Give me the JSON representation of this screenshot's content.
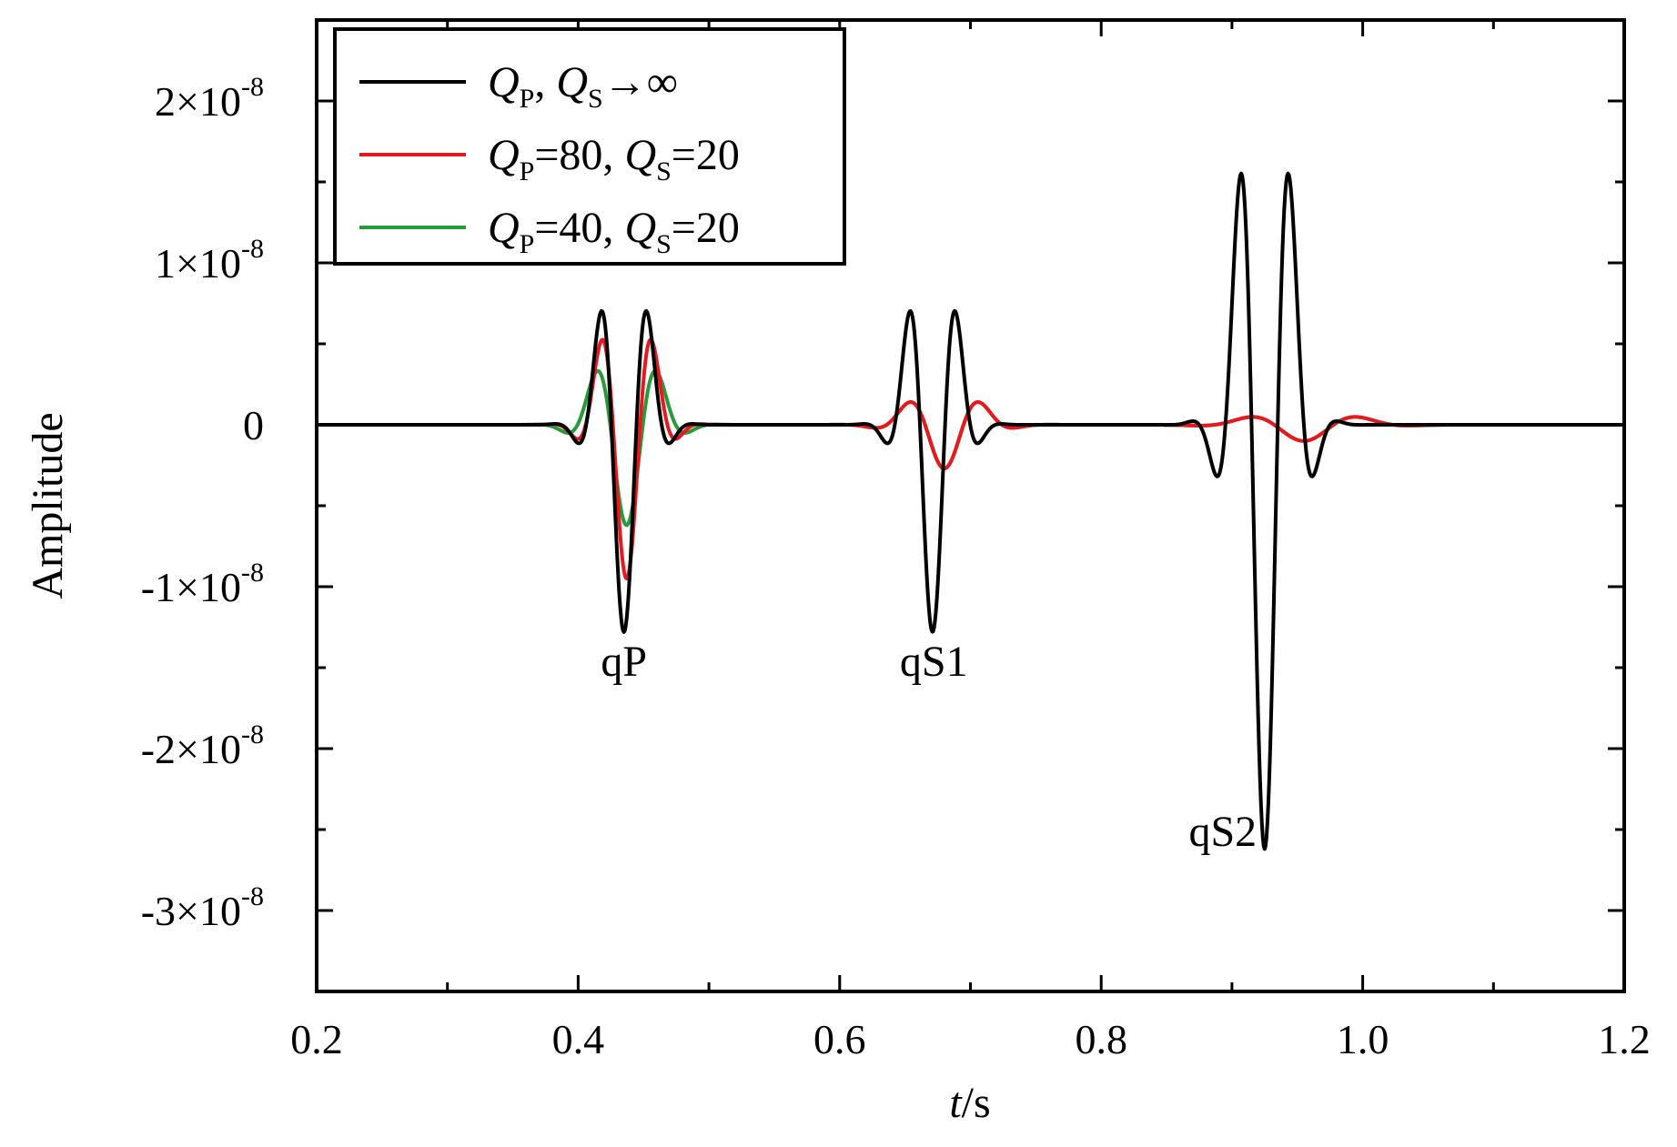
{
  "chart_data": {
    "type": "line",
    "xlabel": {
      "italic": "t",
      "rest": "/s"
    },
    "ylabel": "Amplitude",
    "xlim": [
      0.2,
      1.2
    ],
    "ylim": [
      -3.5e-08,
      2.5e-08
    ],
    "x_ticks": [
      {
        "value": 0.2,
        "label": "0.2"
      },
      {
        "value": 0.4,
        "label": "0.4"
      },
      {
        "value": 0.6,
        "label": "0.6"
      },
      {
        "value": 0.8,
        "label": "0.8"
      },
      {
        "value": 1.0,
        "label": "1.0"
      },
      {
        "value": 1.2,
        "label": "1.2"
      }
    ],
    "x_minor_ticks": [
      0.3,
      0.5,
      0.7,
      0.9,
      1.1
    ],
    "y_ticks": [
      {
        "value": 2e-08,
        "mant": "2×10",
        "exp": "-8"
      },
      {
        "value": 1e-08,
        "mant": "1×10",
        "exp": "-8"
      },
      {
        "value": 0,
        "mant": "0",
        "exp": ""
      },
      {
        "value": -1e-08,
        "mant": "-1×10",
        "exp": "-8"
      },
      {
        "value": -2e-08,
        "mant": "-2×10",
        "exp": "-8"
      },
      {
        "value": -3e-08,
        "mant": "-3×10",
        "exp": "-8"
      }
    ],
    "y_minor_ticks": [
      1.5e-08,
      5e-09,
      -5e-09,
      -1.5e-08,
      -2.5e-08
    ],
    "grid": false,
    "legend_position": "top-left",
    "annotations": [
      {
        "text": "qP",
        "x": 0.435,
        "y": -1.55e-08
      },
      {
        "text": "qS1",
        "x": 0.672,
        "y": -1.55e-08
      },
      {
        "text": "qS2",
        "x": 0.893,
        "y": -2.6e-08
      }
    ],
    "series": [
      {
        "legend": {
          "q1": "Q",
          "s1": "P",
          "mid": ", ",
          "q2": "Q",
          "s2": "S",
          "tail": "→∞"
        },
        "color": "#000000",
        "components": [
          {
            "t0": 0.435,
            "sigma": 0.0165,
            "freq": 26,
            "amp": -1.28e-08,
            "phase": 0.55
          },
          {
            "t0": 0.671,
            "sigma": 0.0165,
            "freq": 26,
            "amp": -1.28e-08,
            "phase": 0.55
          },
          {
            "t0": 0.925,
            "sigma": 0.0185,
            "freq": 25,
            "amp": -2.62e-08,
            "phase": 0.5
          }
        ]
      },
      {
        "legend": {
          "q1": "Q",
          "s1": "P",
          "mid": "=80, ",
          "q2": "Q",
          "s2": "S",
          "tail": "=20"
        },
        "color": "#e8181f",
        "components": [
          {
            "t0": 0.437,
            "sigma": 0.018,
            "freq": 24,
            "amp": -9.5e-09,
            "phase": 0.5
          },
          {
            "t0": 0.68,
            "sigma": 0.024,
            "freq": 17,
            "amp": -2.7e-09,
            "phase": 0.3
          },
          {
            "t0": 0.955,
            "sigma": 0.035,
            "freq": 11,
            "amp": -1e-09,
            "phase": 0.2
          }
        ]
      },
      {
        "legend": {
          "q1": "Q",
          "s1": "P",
          "mid": "=40, ",
          "q2": "Q",
          "s2": "S",
          "tail": "=20"
        },
        "color": "#279a3a",
        "components": [
          {
            "t0": 0.437,
            "sigma": 0.021,
            "freq": 20,
            "amp": -6.2e-09,
            "phase": 0.45
          },
          {
            "t0": 0.68,
            "sigma": 0.024,
            "freq": 17,
            "amp": -2.7e-09,
            "phase": 0.3
          },
          {
            "t0": 0.955,
            "sigma": 0.035,
            "freq": 11,
            "amp": -1e-09,
            "phase": 0.2
          }
        ]
      }
    ]
  }
}
